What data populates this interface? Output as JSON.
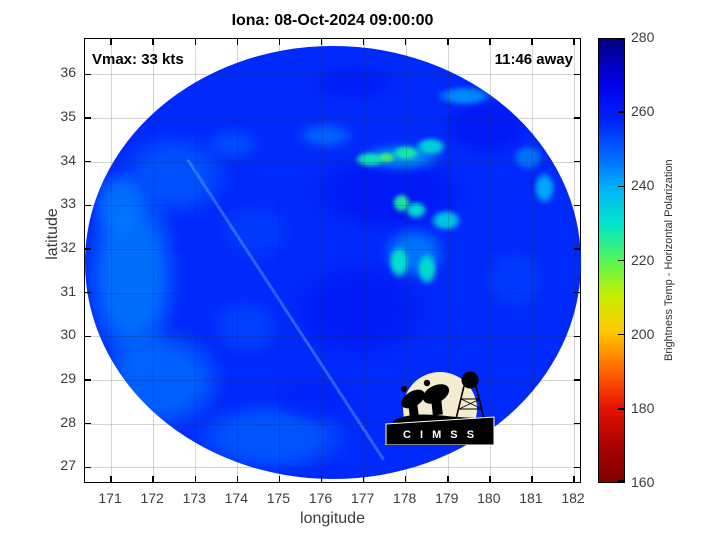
{
  "title": "Iona: 08-Oct-2024 09:00:00",
  "annotations": {
    "vmax": "Vmax: 33 kts",
    "eta": "11:46 away"
  },
  "axes": {
    "x": {
      "label": "longitude",
      "min": 170.38,
      "max": 182.19,
      "ticks": [
        171,
        172,
        173,
        174,
        175,
        176,
        177,
        178,
        179,
        180,
        181,
        182
      ]
    },
    "y": {
      "label": "latitude",
      "min": 26.62,
      "max": 36.81,
      "ticks": [
        27,
        28,
        29,
        30,
        31,
        32,
        33,
        34,
        35,
        36
      ]
    }
  },
  "colorbar": {
    "label": "Brightness Temp - Horizontal Polarization",
    "min": 160,
    "max": 280,
    "ticks": [
      160,
      180,
      200,
      220,
      240,
      260,
      280
    ]
  },
  "logo": {
    "text": "C I M S S"
  },
  "chart_data": {
    "type": "heatmap",
    "title": "Iona: 08-Oct-2024 09:00:00",
    "xlabel": "longitude",
    "ylabel": "latitude",
    "xlim": [
      170.38,
      182.19
    ],
    "ylim": [
      26.62,
      36.81
    ],
    "grid": true,
    "colormap": "jet",
    "value_label": "Brightness Temp - Horizontal Polarization (K)",
    "value_range": [
      160,
      280
    ],
    "storm_name": "Iona",
    "valid_time": "08-Oct-2024 09:00:00",
    "vmax_kts": 33,
    "time_offset": "11:46 away",
    "swath": {
      "center_lon": 176.27,
      "center_lat": 31.69,
      "radius_lon_deg": 5.89,
      "radius_lat_deg": 4.96,
      "background_value": 257
    },
    "seam": {
      "from": [
        172.85,
        34.06
      ],
      "to": [
        177.5,
        27.2
      ],
      "value": 253
    },
    "features": [
      {
        "lon": 171.5,
        "lat": 31.4,
        "value": 245,
        "rx": 1.5,
        "ry": 3.0,
        "soft": true
      },
      {
        "lon": 172.2,
        "lat": 29.0,
        "value": 247,
        "rx": 2.0,
        "ry": 1.6,
        "soft": true
      },
      {
        "lon": 174.8,
        "lat": 27.7,
        "value": 249,
        "rx": 2.6,
        "ry": 1.1,
        "soft": true
      },
      {
        "lon": 172.5,
        "lat": 33.7,
        "value": 250,
        "rx": 1.8,
        "ry": 1.3,
        "soft": true
      },
      {
        "lon": 171.2,
        "lat": 33.0,
        "value": 246,
        "rx": 0.9,
        "ry": 1.1,
        "soft": true
      },
      {
        "lon": 177.6,
        "lat": 33.3,
        "value": 262,
        "rx": 2.6,
        "ry": 1.3,
        "soft": true
      },
      {
        "lon": 176.9,
        "lat": 30.6,
        "value": 261,
        "rx": 2.3,
        "ry": 1.6,
        "soft": true
      },
      {
        "lon": 179.9,
        "lat": 34.8,
        "value": 262,
        "rx": 1.5,
        "ry": 0.9,
        "soft": true
      },
      {
        "lon": 176.8,
        "lat": 35.8,
        "value": 260,
        "rx": 1.5,
        "ry": 0.6,
        "soft": true
      },
      {
        "lon": 174.4,
        "lat": 32.4,
        "value": 254,
        "rx": 1.2,
        "ry": 0.9,
        "soft": true
      },
      {
        "lon": 174.2,
        "lat": 30.2,
        "value": 253,
        "rx": 1.1,
        "ry": 0.9,
        "soft": true
      },
      {
        "lon": 180.6,
        "lat": 31.3,
        "value": 254,
        "rx": 1.0,
        "ry": 1.0,
        "soft": true
      },
      {
        "lon": 179.6,
        "lat": 29.7,
        "value": 257,
        "rx": 1.3,
        "ry": 1.1,
        "soft": true
      },
      {
        "lon": 175.9,
        "lat": 28.6,
        "value": 258,
        "rx": 1.5,
        "ry": 0.8,
        "soft": true
      },
      {
        "lon": 173.9,
        "lat": 34.4,
        "value": 251,
        "rx": 0.9,
        "ry": 0.5,
        "soft": true
      },
      {
        "lon": 176.1,
        "lat": 34.6,
        "value": 247,
        "rx": 0.9,
        "ry": 0.4,
        "soft": true
      },
      {
        "lon": 178.2,
        "lat": 31.9,
        "value": 244,
        "rx": 1.0,
        "ry": 0.8,
        "soft": true
      },
      {
        "lon": 177.9,
        "lat": 34.1,
        "value": 240,
        "rx": 1.3,
        "ry": 0.4,
        "soft": true
      },
      {
        "lon": 179.4,
        "lat": 35.5,
        "value": 244,
        "rx": 0.9,
        "ry": 0.3,
        "soft": false
      },
      {
        "lon": 180.9,
        "lat": 34.1,
        "value": 247,
        "rx": 0.5,
        "ry": 0.4,
        "soft": false
      },
      {
        "lon": 181.3,
        "lat": 33.4,
        "value": 240,
        "rx": 0.35,
        "ry": 0.5,
        "soft": false
      },
      {
        "lon": 177.15,
        "lat": 34.05,
        "value": 228,
        "rx": 0.5,
        "ry": 0.25,
        "soft": false
      },
      {
        "lon": 177.55,
        "lat": 34.1,
        "value": 222,
        "rx": 0.3,
        "ry": 0.17,
        "soft": false
      },
      {
        "lon": 178.0,
        "lat": 34.2,
        "value": 227,
        "rx": 0.45,
        "ry": 0.22,
        "soft": false
      },
      {
        "lon": 178.6,
        "lat": 34.35,
        "value": 233,
        "rx": 0.5,
        "ry": 0.28,
        "soft": false
      },
      {
        "lon": 177.9,
        "lat": 33.05,
        "value": 226,
        "rx": 0.3,
        "ry": 0.3,
        "soft": false
      },
      {
        "lon": 178.25,
        "lat": 32.9,
        "value": 231,
        "rx": 0.35,
        "ry": 0.28,
        "soft": false
      },
      {
        "lon": 178.95,
        "lat": 32.65,
        "value": 235,
        "rx": 0.5,
        "ry": 0.33,
        "soft": false
      },
      {
        "lon": 177.85,
        "lat": 31.7,
        "value": 230,
        "rx": 0.33,
        "ry": 0.5,
        "soft": false
      },
      {
        "lon": 178.5,
        "lat": 31.55,
        "value": 231,
        "rx": 0.33,
        "ry": 0.5,
        "soft": false
      }
    ]
  }
}
